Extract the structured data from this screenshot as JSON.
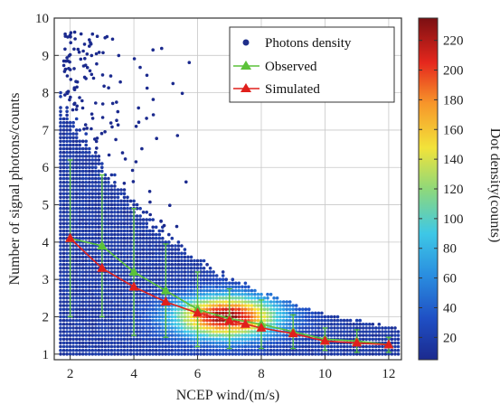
{
  "chart_data": {
    "type": "scatter",
    "xlabel": "NCEP wind/(m/s)",
    "ylabel": "Number of signal photons/counts",
    "xlim": [
      1.5,
      12.4
    ],
    "ylim": [
      0.85,
      10
    ],
    "xticks": [
      "2",
      "4",
      "6",
      "8",
      "10",
      "12"
    ],
    "yticks": [
      "1",
      "2",
      "3",
      "4",
      "5",
      "6",
      "7",
      "8",
      "9",
      "10"
    ],
    "grid": true,
    "legend_position": "top-right",
    "colorbar": {
      "label": "Dot density(counts)",
      "ticks": [
        "20",
        "40",
        "60",
        "80",
        "100",
        "120",
        "140",
        "160",
        "180",
        "200",
        "220"
      ],
      "range": [
        5,
        235
      ]
    },
    "series": [
      {
        "name": "Photons density",
        "kind": "density_scatter",
        "color": "#1f2f8a"
      },
      {
        "name": "Observed",
        "kind": "line_errorbar",
        "color": "#5cc23a",
        "x": [
          2,
          3,
          4,
          5,
          6,
          7,
          8,
          9,
          10,
          11,
          12
        ],
        "y": [
          4.1,
          3.9,
          3.2,
          2.7,
          2.2,
          1.95,
          1.8,
          1.6,
          1.4,
          1.35,
          1.25
        ],
        "err": [
          2.1,
          1.9,
          1.7,
          1.25,
          1.0,
          0.8,
          0.65,
          0.45,
          0.3,
          0.3,
          0.2
        ]
      },
      {
        "name": "Simulated",
        "kind": "line",
        "color": "#e0201c",
        "x": [
          2,
          3,
          4,
          5,
          6,
          7,
          7.5,
          8,
          9,
          10,
          11,
          12
        ],
        "y": [
          4.1,
          3.3,
          2.8,
          2.4,
          2.1,
          1.9,
          1.8,
          1.7,
          1.55,
          1.35,
          1.3,
          1.25
        ]
      }
    ]
  },
  "colors": {
    "background": "#ffffff",
    "grid": "#c8c8c8",
    "frame": "#333333"
  }
}
